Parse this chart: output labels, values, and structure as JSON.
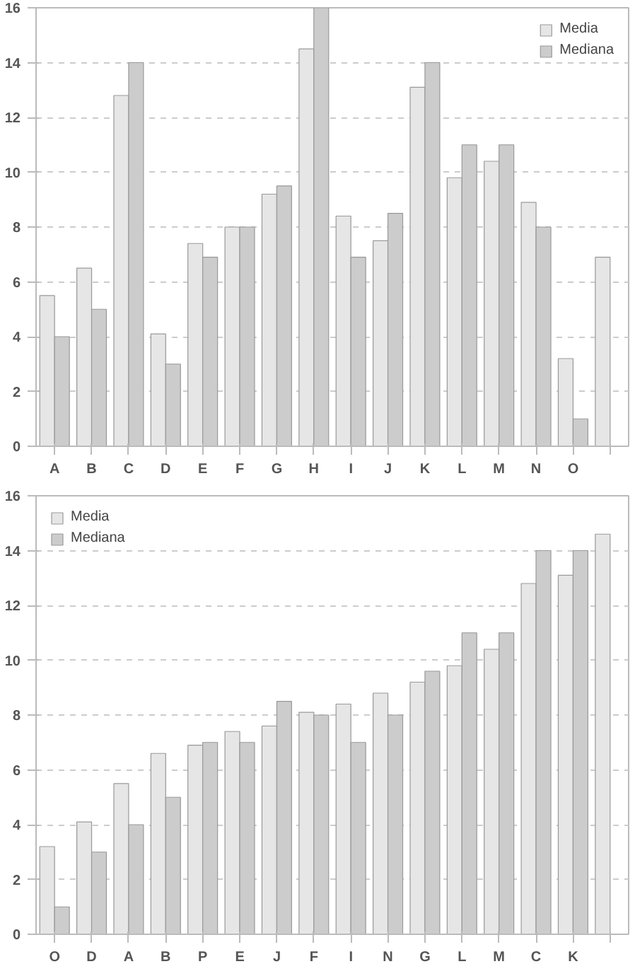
{
  "chart_data": [
    {
      "type": "bar",
      "categories": [
        "A",
        "B",
        "C",
        "D",
        "E",
        "F",
        "G",
        "H",
        "I",
        "J",
        "K",
        "L",
        "M",
        "N",
        "O",
        null
      ],
      "series": [
        {
          "name": "Media",
          "color": "#e6e6e6",
          "values": [
            5.5,
            6.5,
            12.8,
            4.1,
            7.4,
            8,
            9.2,
            14.5,
            8.4,
            7.5,
            13.1,
            9.8,
            10.4,
            8.9,
            3.2,
            6.9
          ]
        },
        {
          "name": "Mediana",
          "color": "#cccccc",
          "values": [
            4,
            5,
            14,
            3,
            6.9,
            8,
            9.5,
            16,
            6.9,
            8.5,
            14,
            11,
            11,
            8,
            1,
            null
          ]
        }
      ],
      "ylim": [
        0,
        16
      ],
      "yticks": [
        0,
        2,
        4,
        6,
        8,
        10,
        12,
        14,
        16
      ],
      "grid": "y",
      "legend": "top right"
    },
    {
      "type": "bar",
      "categories": [
        "O",
        "D",
        "A",
        "B",
        "P",
        "E",
        "J",
        "F",
        "I",
        "N",
        "G",
        "L",
        "M",
        "C",
        "K",
        null
      ],
      "series": [
        {
          "name": "Media",
          "color": "#e6e6e6",
          "values": [
            3.2,
            4.1,
            5.5,
            6.6,
            6.9,
            7.4,
            7.6,
            8.1,
            8.4,
            8.8,
            9.2,
            9.8,
            10.4,
            12.8,
            13.1,
            14.6
          ]
        },
        {
          "name": "Mediana",
          "color": "#cccccc",
          "values": [
            1,
            3,
            4,
            5,
            7,
            7,
            8.5,
            8,
            7,
            8,
            9.6,
            11,
            11,
            14,
            14,
            null
          ]
        }
      ],
      "ylim": [
        0,
        16
      ],
      "yticks": [
        0,
        2,
        4,
        6,
        8,
        10,
        12,
        14,
        16
      ],
      "grid": "y",
      "legend": "top left"
    }
  ]
}
